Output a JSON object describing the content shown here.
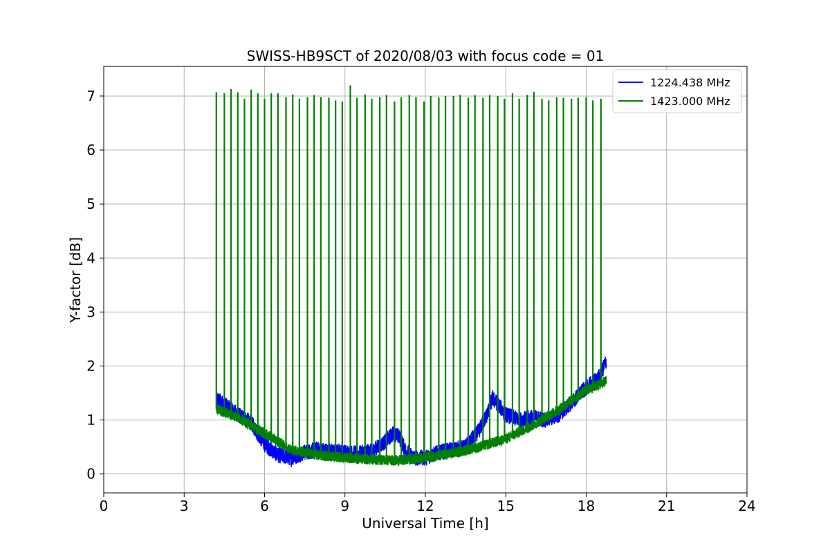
{
  "chart_data": {
    "type": "line",
    "title": "SWISS-HB9SCT of 2020/08/03 with focus code = 01",
    "xlabel": "Universal Time [h]",
    "ylabel": "Y-factor [dB]",
    "xlim": [
      0,
      24
    ],
    "ylim": [
      -0.35,
      7.55
    ],
    "xticks": [
      0,
      3,
      6,
      9,
      12,
      15,
      18,
      21,
      24
    ],
    "yticks": [
      0,
      1,
      2,
      3,
      4,
      5,
      6,
      7
    ],
    "grid": true,
    "legend_position": "top-right",
    "series": [
      {
        "name": "1224.438 MHz",
        "color": "#0000ff",
        "baseline_x": [
          4.2,
          4.6,
          5.0,
          5.5,
          6.0,
          6.5,
          7.0,
          7.5,
          8.0,
          8.5,
          9.0,
          9.5,
          10.0,
          10.5,
          10.8,
          11.0,
          11.3,
          11.6,
          12.0,
          12.5,
          13.0,
          13.5,
          14.0,
          14.3,
          14.5,
          14.7,
          15.0,
          15.5,
          16.0,
          16.5,
          17.0,
          17.5,
          18.0,
          18.5,
          18.75
        ],
        "baseline_y": [
          1.4,
          1.25,
          1.1,
          0.95,
          0.55,
          0.35,
          0.3,
          0.4,
          0.45,
          0.42,
          0.4,
          0.38,
          0.42,
          0.6,
          0.75,
          0.7,
          0.4,
          0.3,
          0.3,
          0.4,
          0.45,
          0.5,
          0.8,
          1.1,
          1.4,
          1.3,
          1.1,
          1.0,
          1.05,
          1.0,
          1.1,
          1.35,
          1.6,
          1.8,
          2.1
        ],
        "noise_amplitude": 0.15
      },
      {
        "name": "1423.000 MHz",
        "color": "#008000",
        "baseline_x": [
          4.2,
          5.0,
          6.0,
          7.0,
          8.0,
          9.0,
          10.0,
          11.0,
          12.0,
          13.0,
          14.0,
          15.0,
          16.0,
          17.0,
          18.0,
          18.75
        ],
        "baseline_y": [
          1.2,
          1.05,
          0.75,
          0.45,
          0.35,
          0.3,
          0.27,
          0.25,
          0.3,
          0.38,
          0.5,
          0.65,
          0.9,
          1.2,
          1.55,
          1.72
        ],
        "noise_amplitude": 0.1,
        "spikes_x": [
          4.2,
          4.5,
          4.75,
          5.0,
          5.25,
          5.5,
          5.75,
          6.0,
          6.25,
          6.5,
          6.8,
          7.05,
          7.3,
          7.6,
          7.85,
          8.1,
          8.4,
          8.65,
          8.9,
          9.2,
          9.45,
          9.75,
          10.0,
          10.3,
          10.55,
          10.85,
          11.1,
          11.4,
          11.65,
          11.95,
          12.2,
          12.5,
          12.75,
          13.05,
          13.3,
          13.6,
          13.85,
          14.15,
          14.4,
          14.7,
          14.95,
          15.25,
          15.5,
          15.8,
          16.05,
          16.35,
          16.6,
          16.9,
          17.15,
          17.45,
          17.7,
          18.0,
          18.25,
          18.55
        ],
        "spikes_y": [
          7.07,
          7.05,
          7.13,
          7.07,
          6.95,
          7.12,
          7.05,
          6.95,
          7.05,
          7.05,
          6.98,
          7.03,
          6.95,
          6.98,
          7.02,
          6.98,
          6.97,
          6.92,
          6.9,
          7.2,
          6.97,
          7.03,
          6.95,
          6.98,
          7.02,
          6.9,
          6.98,
          7.02,
          6.98,
          6.9,
          7.0,
          6.98,
          7.0,
          7.0,
          7.02,
          6.97,
          7.02,
          6.97,
          7.02,
          7.0,
          6.95,
          7.05,
          6.95,
          7.02,
          7.08,
          6.95,
          6.92,
          6.98,
          6.97,
          6.95,
          6.97,
          6.98,
          6.92,
          6.95
        ]
      }
    ]
  }
}
